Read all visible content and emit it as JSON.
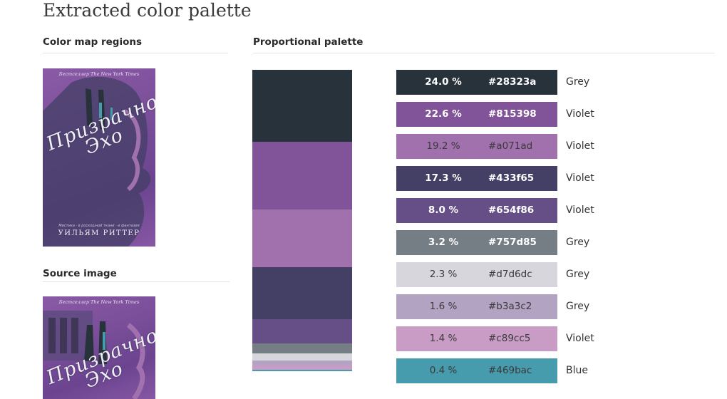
{
  "page": {
    "title": "Extracted color palette"
  },
  "sections": {
    "color_map": "Color map regions",
    "source_image": "Source image",
    "proportional": "Proportional palette"
  },
  "cover": {
    "blurb": "Бестселлер The New York Times",
    "title_line1": "Призрачное",
    "title_line2": "Эхо",
    "subtitle": "Мистика · в роскошной ткани · и фантазия",
    "author": "УИЛЬЯМ РИТТЕР"
  },
  "palette": [
    {
      "percent": "24.0 %",
      "hex": "#28323a",
      "name": "Grey",
      "color": "#28323a",
      "text": "light",
      "share": 24.0
    },
    {
      "percent": "22.6 %",
      "hex": "#815398",
      "name": "Violet",
      "color": "#815398",
      "text": "light",
      "share": 22.6
    },
    {
      "percent": "19.2 %",
      "hex": "#a071ad",
      "name": "Violet",
      "color": "#a071ad",
      "text": "dark",
      "share": 19.2
    },
    {
      "percent": "17.3 %",
      "hex": "#433f65",
      "name": "Violet",
      "color": "#433f65",
      "text": "light",
      "share": 17.3
    },
    {
      "percent": "8.0 %",
      "hex": "#654f86",
      "name": "Violet",
      "color": "#654f86",
      "text": "light",
      "share": 8.0
    },
    {
      "percent": "3.2 %",
      "hex": "#757d85",
      "name": "Grey",
      "color": "#757d85",
      "text": "light",
      "share": 3.2
    },
    {
      "percent": "2.3 %",
      "hex": "#d7d6dc",
      "name": "Grey",
      "color": "#d7d6dc",
      "text": "dark",
      "share": 2.3
    },
    {
      "percent": "1.6 %",
      "hex": "#b3a3c2",
      "name": "Grey",
      "color": "#b3a3c2",
      "text": "dark",
      "share": 1.6
    },
    {
      "percent": "1.4 %",
      "hex": "#c89cc5",
      "name": "Violet",
      "color": "#c89cc5",
      "text": "dark",
      "share": 1.4
    },
    {
      "percent": "0.4 %",
      "hex": "#469bac",
      "name": "Blue",
      "color": "#469bac",
      "text": "dark",
      "share": 0.4
    }
  ]
}
